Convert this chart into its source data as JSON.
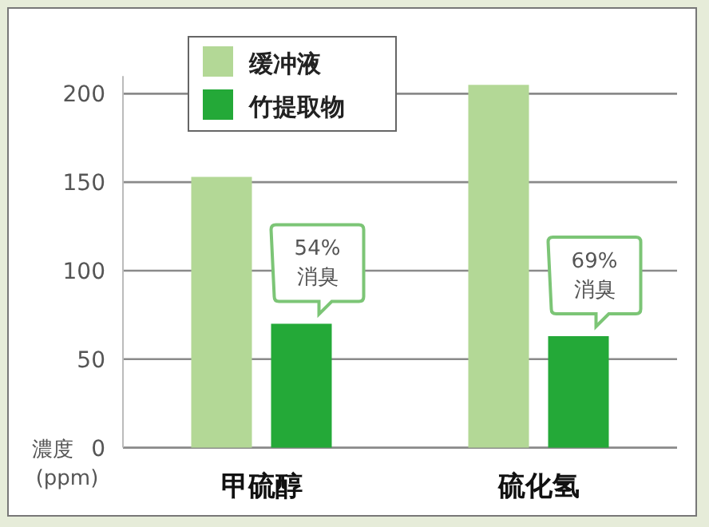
{
  "chart_data": {
    "type": "bar",
    "categories": [
      "甲硫醇",
      "硫化氢"
    ],
    "series": [
      {
        "name": "缓冲液",
        "color": "#b3d896",
        "values": [
          153,
          205
        ]
      },
      {
        "name": "竹提取物",
        "color": "#24a938",
        "values": [
          70,
          63
        ]
      }
    ],
    "ylabel": "濃度 (ppm)",
    "ylim": [
      0,
      210
    ],
    "yticks": [
      0,
      50,
      100,
      150,
      200
    ],
    "grid": "y",
    "legend": "top left",
    "annotations": [
      "54%\n消臭",
      "69%\n消臭"
    ]
  }
}
